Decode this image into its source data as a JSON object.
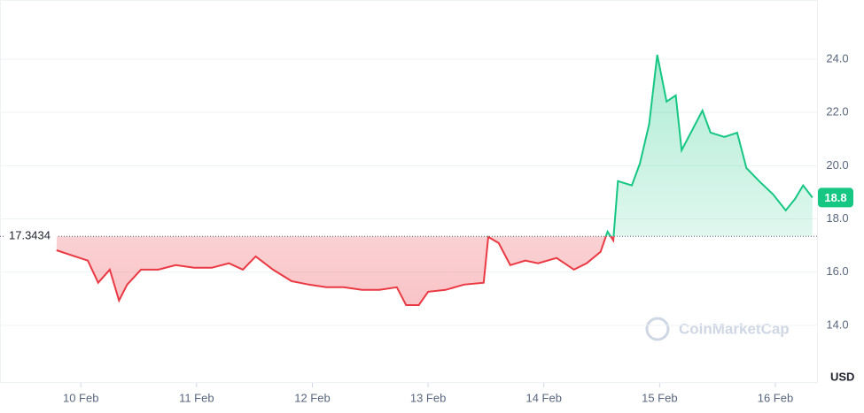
{
  "chart_data": {
    "type": "line",
    "x": [
      9.79,
      9.95,
      10.06,
      10.15,
      10.25,
      10.33,
      10.4,
      10.52,
      10.67,
      10.82,
      10.98,
      11.13,
      11.28,
      11.4,
      11.51,
      11.66,
      11.82,
      11.97,
      12.12,
      12.27,
      12.43,
      12.58,
      12.73,
      12.81,
      12.92,
      13.0,
      13.15,
      13.31,
      13.48,
      13.52,
      13.61,
      13.71,
      13.84,
      13.95,
      14.11,
      14.26,
      14.37,
      14.49,
      14.55,
      14.6,
      14.64,
      14.76,
      14.83,
      14.91,
      14.98,
      15.06,
      15.14,
      15.19,
      15.27,
      15.37,
      15.44,
      15.56,
      15.67,
      15.75,
      15.86,
      15.98,
      16.09,
      16.17,
      16.24,
      16.32
    ],
    "values": [
      16.82,
      16.59,
      16.43,
      15.6,
      16.09,
      14.93,
      15.53,
      16.09,
      16.09,
      16.26,
      16.16,
      16.16,
      16.33,
      16.09,
      16.59,
      16.09,
      15.66,
      15.53,
      15.43,
      15.43,
      15.33,
      15.33,
      15.43,
      14.76,
      14.76,
      15.26,
      15.33,
      15.53,
      15.6,
      17.32,
      17.09,
      16.26,
      16.43,
      16.33,
      16.53,
      16.09,
      16.33,
      16.76,
      17.52,
      17.19,
      19.42,
      19.26,
      20.08,
      21.57,
      24.17,
      22.41,
      22.64,
      20.58,
      21.24,
      22.07,
      21.24,
      21.08,
      21.24,
      19.91,
      19.42,
      18.92,
      18.32,
      18.75,
      19.26,
      18.8
    ],
    "baseline": 17.3434,
    "last_price": 18.8,
    "color_up": "#16c784",
    "color_down": "#ea3943",
    "xlim": [
      9.34,
      16.36
    ],
    "xticks": [
      {
        "value": 10,
        "label": "10 Feb"
      },
      {
        "value": 11,
        "label": "11 Feb"
      },
      {
        "value": 12,
        "label": "12 Feb"
      },
      {
        "value": 13,
        "label": "13 Feb"
      },
      {
        "value": 14,
        "label": "14 Feb"
      },
      {
        "value": 15,
        "label": "15 Feb"
      },
      {
        "value": 16,
        "label": "16 Feb"
      }
    ],
    "ylim": [
      12,
      26
    ],
    "yticks": [
      {
        "value": 14,
        "label": "14.0"
      },
      {
        "value": 16,
        "label": "16.0"
      },
      {
        "value": 18,
        "label": "18.0"
      },
      {
        "value": 20,
        "label": "20.0"
      },
      {
        "value": 22,
        "label": "22.0"
      },
      {
        "value": 24,
        "label": "24.0"
      }
    ],
    "y_unit": "USD",
    "watermark": "CoinMarketCap",
    "grid": true
  }
}
